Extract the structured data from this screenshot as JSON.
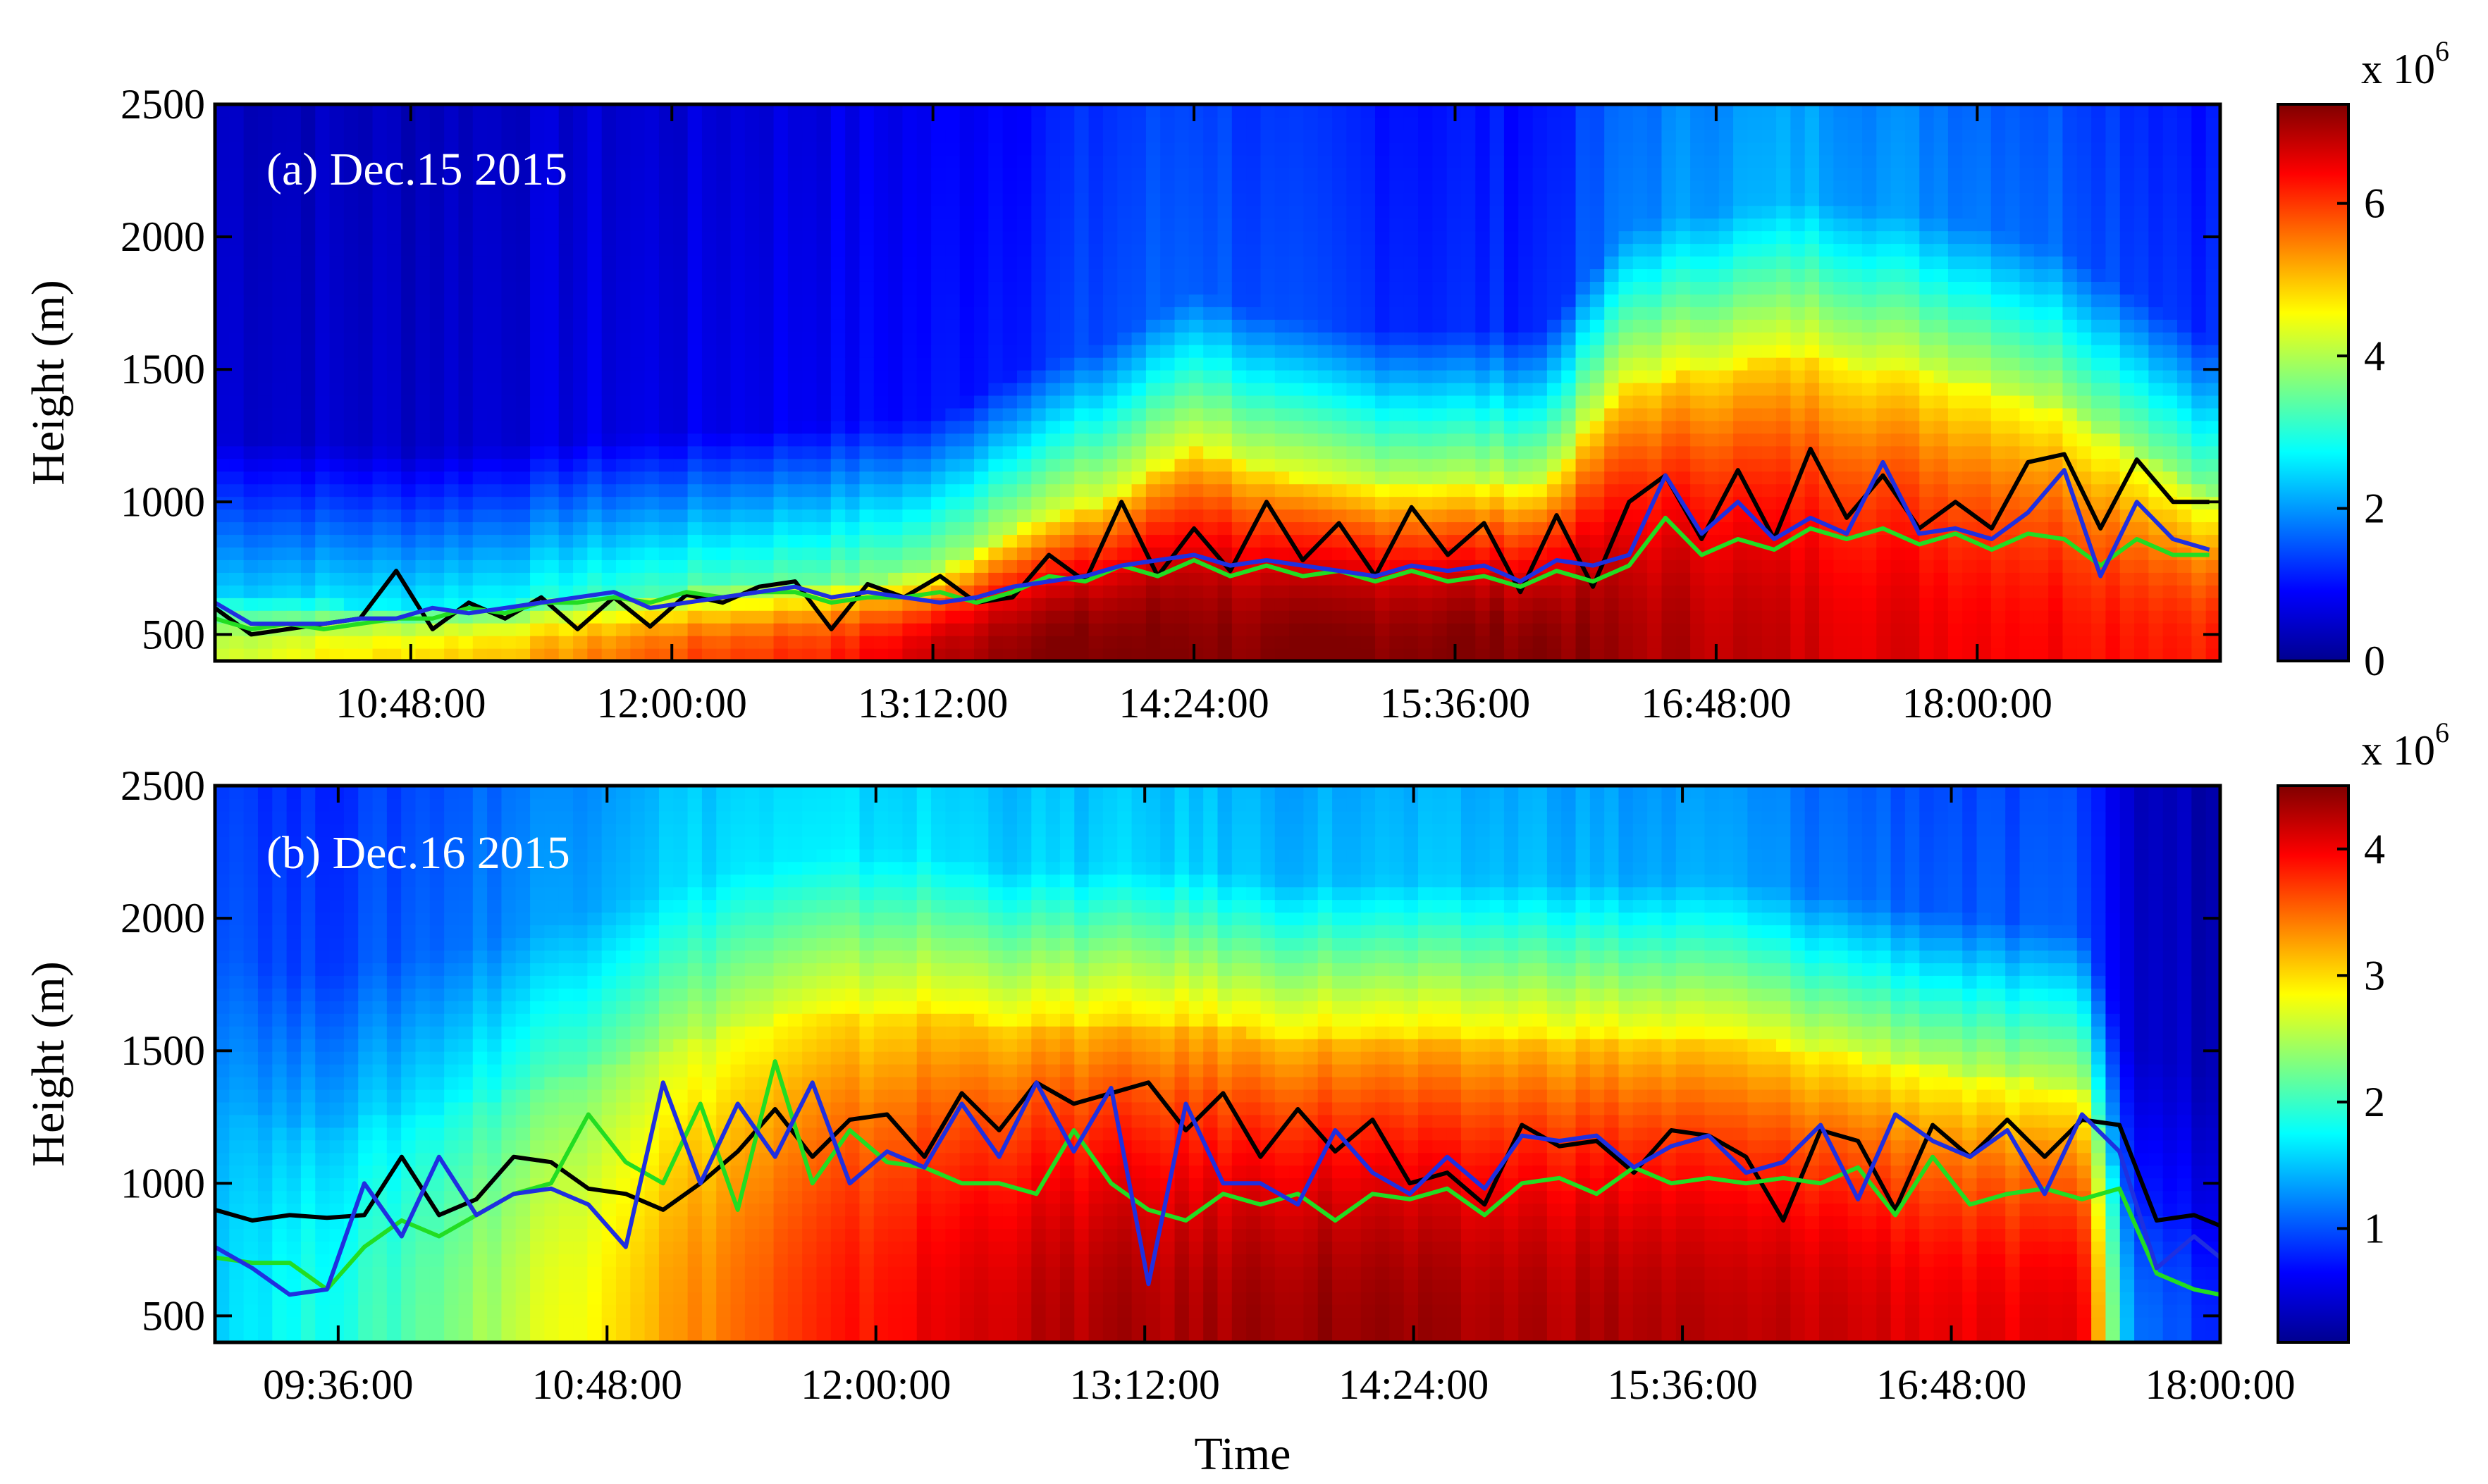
{
  "figure": {
    "xlabel": "Time",
    "ylabel": "Height (m)"
  },
  "chart_data": [
    {
      "type": "heatmap",
      "panel_label": "(a) Dec.15 2015",
      "ylabel": "Height (m)",
      "xlabel": "",
      "x_unit": "time of day (HH:MM:SS)",
      "xlim": [
        "09:54:00",
        "19:07:00"
      ],
      "ylim": [
        400,
        2500
      ],
      "x_ticks": [
        "10:48:00",
        "12:00:00",
        "13:12:00",
        "14:24:00",
        "15:36:00",
        "16:48:00",
        "18:00:00"
      ],
      "y_ticks": [
        500,
        1000,
        1500,
        2000,
        2500
      ],
      "colorbar": {
        "multiplier": "x 10",
        "exponent": "6",
        "range": [
          0,
          7.3
        ],
        "ticks": [
          0,
          2,
          4,
          6
        ],
        "colormap": "jet"
      },
      "heatmap_profile": {
        "description": "layer top height (m) and intensity (x10^6) per time",
        "times": [
          "09:54",
          "10:24",
          "10:48",
          "11:12",
          "11:36",
          "12:00",
          "12:24",
          "12:48",
          "13:12",
          "13:36",
          "14:00",
          "14:24",
          "14:48",
          "15:12",
          "15:36",
          "16:00",
          "16:24",
          "16:48",
          "17:12",
          "17:36",
          "18:00",
          "18:24",
          "18:48",
          "19:07"
        ],
        "layer_top": [
          640,
          620,
          600,
          610,
          640,
          660,
          680,
          700,
          720,
          900,
          1000,
          1200,
          1100,
          1050,
          1050,
          1050,
          1450,
          1500,
          1550,
          1500,
          1450,
          1350,
          1150,
          1000
        ],
        "core_value": [
          4.2,
          4.6,
          4.8,
          5.0,
          5.4,
          5.8,
          6.0,
          6.2,
          6.8,
          7.3,
          7.3,
          7.3,
          7.2,
          7.3,
          7.3,
          7.3,
          7.0,
          6.9,
          6.7,
          6.6,
          6.5,
          6.4,
          6.3,
          6.2
        ],
        "aloft_value": [
          0.7,
          0.6,
          0.6,
          0.7,
          0.8,
          0.8,
          0.9,
          1.0,
          1.1,
          1.3,
          1.6,
          1.8,
          1.5,
          1.4,
          1.3,
          1.3,
          2.0,
          2.3,
          2.4,
          2.2,
          2.0,
          1.8,
          1.5,
          1.3
        ]
      },
      "series": [
        {
          "color": "#000000",
          "x": [
            "09:54",
            "10:04",
            "10:14",
            "10:24",
            "10:34",
            "10:44",
            "10:54",
            "11:04",
            "11:14",
            "11:24",
            "11:34",
            "11:44",
            "11:54",
            "12:04",
            "12:14",
            "12:24",
            "12:34",
            "12:44",
            "12:54",
            "13:04",
            "13:14",
            "13:24",
            "13:34",
            "13:44",
            "13:54",
            "14:04",
            "14:14",
            "14:24",
            "14:34",
            "14:44",
            "14:54",
            "15:04",
            "15:14",
            "15:24",
            "15:34",
            "15:44",
            "15:54",
            "16:04",
            "16:14",
            "16:24",
            "16:34",
            "16:44",
            "16:54",
            "17:04",
            "17:14",
            "17:24",
            "17:34",
            "17:44",
            "17:54",
            "18:04",
            "18:14",
            "18:24",
            "18:34",
            "18:44",
            "18:54",
            "19:04"
          ],
          "y": [
            600,
            500,
            520,
            540,
            560,
            740,
            520,
            620,
            560,
            640,
            520,
            640,
            530,
            650,
            620,
            680,
            700,
            520,
            690,
            640,
            720,
            620,
            640,
            800,
            700,
            1000,
            720,
            900,
            740,
            1000,
            780,
            920,
            720,
            980,
            800,
            920,
            660,
            950,
            680,
            1000,
            1100,
            860,
            1120,
            860,
            1200,
            940,
            1100,
            900,
            1000,
            900,
            1150,
            1180,
            900,
            1160,
            1000,
            1000
          ]
        },
        {
          "color": "#22dd22",
          "x": [
            "09:54",
            "10:04",
            "10:14",
            "10:24",
            "10:34",
            "10:44",
            "10:54",
            "11:04",
            "11:14",
            "11:24",
            "11:34",
            "11:44",
            "11:54",
            "12:04",
            "12:14",
            "12:24",
            "12:34",
            "12:44",
            "12:54",
            "13:04",
            "13:14",
            "13:24",
            "13:34",
            "13:44",
            "13:54",
            "14:04",
            "14:14",
            "14:24",
            "14:34",
            "14:44",
            "14:54",
            "15:04",
            "15:14",
            "15:24",
            "15:34",
            "15:44",
            "15:54",
            "16:04",
            "16:14",
            "16:24",
            "16:34",
            "16:44",
            "16:54",
            "17:04",
            "17:14",
            "17:24",
            "17:34",
            "17:44",
            "17:54",
            "18:04",
            "18:14",
            "18:24",
            "18:34",
            "18:44",
            "18:54",
            "19:04"
          ],
          "y": [
            560,
            520,
            540,
            520,
            540,
            560,
            560,
            600,
            580,
            620,
            620,
            640,
            620,
            660,
            640,
            660,
            660,
            620,
            640,
            640,
            660,
            620,
            660,
            720,
            700,
            760,
            720,
            780,
            720,
            760,
            720,
            740,
            700,
            740,
            700,
            720,
            680,
            740,
            700,
            760,
            940,
            800,
            860,
            820,
            900,
            860,
            900,
            840,
            880,
            820,
            880,
            860,
            760,
            860,
            800,
            800
          ]
        },
        {
          "color": "#1f2fe0",
          "x": [
            "09:54",
            "10:04",
            "10:14",
            "10:24",
            "10:34",
            "10:44",
            "10:54",
            "11:04",
            "11:14",
            "11:24",
            "11:34",
            "11:44",
            "11:54",
            "12:04",
            "12:14",
            "12:24",
            "12:34",
            "12:44",
            "12:54",
            "13:04",
            "13:14",
            "13:24",
            "13:34",
            "13:44",
            "13:54",
            "14:04",
            "14:14",
            "14:24",
            "14:34",
            "14:44",
            "14:54",
            "15:04",
            "15:14",
            "15:24",
            "15:34",
            "15:44",
            "15:54",
            "16:04",
            "16:14",
            "16:24",
            "16:34",
            "16:44",
            "16:54",
            "17:04",
            "17:14",
            "17:24",
            "17:34",
            "17:44",
            "17:54",
            "18:04",
            "18:14",
            "18:24",
            "18:34",
            "18:44",
            "18:54",
            "19:04"
          ],
          "y": [
            620,
            540,
            540,
            540,
            560,
            560,
            600,
            580,
            600,
            620,
            640,
            660,
            600,
            620,
            640,
            660,
            680,
            640,
            660,
            640,
            620,
            640,
            680,
            700,
            720,
            760,
            780,
            800,
            760,
            780,
            760,
            740,
            720,
            760,
            740,
            760,
            700,
            780,
            760,
            800,
            1100,
            880,
            1000,
            860,
            940,
            880,
            1150,
            880,
            900,
            860,
            960,
            1120,
            720,
            1000,
            860,
            820
          ]
        }
      ]
    },
    {
      "type": "heatmap",
      "panel_label": "(b) Dec.16 2015",
      "ylabel": "Height (m)",
      "xlabel": "Time",
      "x_unit": "time of day (HH:MM:SS)",
      "xlim": [
        "09:03:00",
        "18:00:00"
      ],
      "ylim": [
        400,
        2500
      ],
      "x_ticks": [
        "09:36:00",
        "10:48:00",
        "12:00:00",
        "13:12:00",
        "14:24:00",
        "15:36:00",
        "16:48:00",
        "18:00:00"
      ],
      "y_ticks": [
        500,
        1000,
        1500,
        2000,
        2500
      ],
      "colorbar": {
        "multiplier": "x 10",
        "exponent": "6",
        "range": [
          0.1,
          4.5
        ],
        "ticks": [
          1,
          2,
          3,
          4
        ],
        "colormap": "jet"
      },
      "heatmap_profile": {
        "description": "layer top height (m) and intensity (x10^6) per time",
        "times": [
          "09:03",
          "09:24",
          "09:48",
          "10:12",
          "10:36",
          "11:00",
          "11:24",
          "11:48",
          "12:12",
          "12:36",
          "13:00",
          "13:24",
          "13:48",
          "14:12",
          "14:36",
          "15:00",
          "15:24",
          "15:48",
          "16:12",
          "16:36",
          "17:00",
          "17:24",
          "17:36",
          "18:00"
        ],
        "layer_top": [
          1300,
          1200,
          1250,
          1300,
          1400,
          1500,
          1600,
          1650,
          1650,
          1600,
          1600,
          1600,
          1550,
          1550,
          1550,
          1550,
          1550,
          1550,
          1500,
          1450,
          1400,
          1350,
          900,
          800
        ],
        "core_value": [
          1.6,
          1.8,
          2.0,
          2.4,
          2.8,
          3.2,
          3.5,
          3.8,
          4.0,
          4.2,
          4.3,
          4.3,
          4.4,
          4.4,
          4.3,
          4.3,
          4.3,
          4.2,
          4.2,
          4.1,
          4.0,
          4.0,
          1.2,
          0.8
        ],
        "aloft_value": [
          1.2,
          1.0,
          1.1,
          1.3,
          1.5,
          1.7,
          1.8,
          1.8,
          1.8,
          1.7,
          1.7,
          1.7,
          1.6,
          1.6,
          1.6,
          1.6,
          1.5,
          1.5,
          1.3,
          1.2,
          1.1,
          1.1,
          0.5,
          0.4
        ]
      },
      "series": [
        {
          "color": "#000000",
          "x": [
            "09:03",
            "09:13",
            "09:23",
            "09:33",
            "09:43",
            "09:53",
            "10:03",
            "10:13",
            "10:23",
            "10:33",
            "10:43",
            "10:53",
            "11:03",
            "11:13",
            "11:23",
            "11:33",
            "11:43",
            "11:53",
            "12:03",
            "12:13",
            "12:23",
            "12:33",
            "12:43",
            "12:53",
            "13:03",
            "13:13",
            "13:23",
            "13:33",
            "13:43",
            "13:53",
            "14:03",
            "14:13",
            "14:23",
            "14:33",
            "14:43",
            "14:53",
            "15:03",
            "15:13",
            "15:23",
            "15:33",
            "15:43",
            "15:53",
            "16:03",
            "16:13",
            "16:23",
            "16:33",
            "16:43",
            "16:53",
            "17:03",
            "17:13",
            "17:23",
            "17:33",
            "17:43",
            "17:53",
            "18:00"
          ],
          "y": [
            900,
            860,
            880,
            870,
            880,
            1100,
            880,
            940,
            1100,
            1080,
            980,
            960,
            900,
            1000,
            1120,
            1280,
            1100,
            1240,
            1260,
            1100,
            1340,
            1200,
            1380,
            1300,
            1340,
            1380,
            1200,
            1340,
            1100,
            1280,
            1120,
            1240,
            1000,
            1040,
            920,
            1220,
            1140,
            1160,
            1040,
            1200,
            1180,
            1100,
            860,
            1200,
            1160,
            900,
            1220,
            1100,
            1240,
            1100,
            1240,
            1220,
            860,
            880,
            840
          ]
        },
        {
          "color": "#22dd22",
          "x": [
            "09:03",
            "09:13",
            "09:23",
            "09:33",
            "09:43",
            "09:53",
            "10:03",
            "10:13",
            "10:23",
            "10:33",
            "10:43",
            "10:53",
            "11:03",
            "11:13",
            "11:23",
            "11:33",
            "11:43",
            "11:53",
            "12:03",
            "12:13",
            "12:23",
            "12:33",
            "12:43",
            "12:53",
            "13:03",
            "13:13",
            "13:23",
            "13:33",
            "13:43",
            "13:53",
            "14:03",
            "14:13",
            "14:23",
            "14:33",
            "14:43",
            "14:53",
            "15:03",
            "15:13",
            "15:23",
            "15:33",
            "15:43",
            "15:53",
            "16:03",
            "16:13",
            "16:23",
            "16:33",
            "16:43",
            "16:53",
            "17:03",
            "17:13",
            "17:23",
            "17:33",
            "17:43",
            "17:53",
            "18:00"
          ],
          "y": [
            720,
            700,
            700,
            600,
            760,
            860,
            800,
            880,
            960,
            1000,
            1260,
            1080,
            1000,
            1300,
            900,
            1460,
            1000,
            1200,
            1080,
            1060,
            1000,
            1000,
            960,
            1200,
            1000,
            900,
            860,
            960,
            920,
            960,
            860,
            960,
            940,
            980,
            880,
            1000,
            1020,
            960,
            1060,
            1000,
            1020,
            1000,
            1020,
            1000,
            1060,
            880,
            1100,
            920,
            960,
            980,
            940,
            980,
            660,
            600,
            580
          ]
        },
        {
          "color": "#1f2fe0",
          "x": [
            "09:03",
            "09:13",
            "09:23",
            "09:33",
            "09:43",
            "09:53",
            "10:03",
            "10:13",
            "10:23",
            "10:33",
            "10:43",
            "10:53",
            "11:03",
            "11:13",
            "11:23",
            "11:33",
            "11:43",
            "11:53",
            "12:03",
            "12:13",
            "12:23",
            "12:33",
            "12:43",
            "12:53",
            "13:03",
            "13:13",
            "13:23",
            "13:33",
            "13:43",
            "13:53",
            "14:03",
            "14:13",
            "14:23",
            "14:33",
            "14:43",
            "14:53",
            "15:03",
            "15:13",
            "15:23",
            "15:33",
            "15:43",
            "15:53",
            "16:03",
            "16:13",
            "16:23",
            "16:33",
            "16:43",
            "16:53",
            "17:03",
            "17:13",
            "17:23",
            "17:33",
            "17:43",
            "17:53",
            "18:00"
          ],
          "y": [
            760,
            680,
            580,
            600,
            1000,
            800,
            1100,
            880,
            960,
            980,
            920,
            760,
            1380,
            1000,
            1300,
            1100,
            1380,
            1000,
            1120,
            1060,
            1300,
            1100,
            1380,
            1120,
            1360,
            620,
            1300,
            1000,
            1000,
            920,
            1200,
            1040,
            960,
            1100,
            980,
            1180,
            1160,
            1180,
            1060,
            1140,
            1180,
            1040,
            1080,
            1220,
            940,
            1260,
            1160,
            1100,
            1200,
            960,
            1260,
            1120,
            680,
            800,
            720
          ]
        }
      ]
    }
  ]
}
